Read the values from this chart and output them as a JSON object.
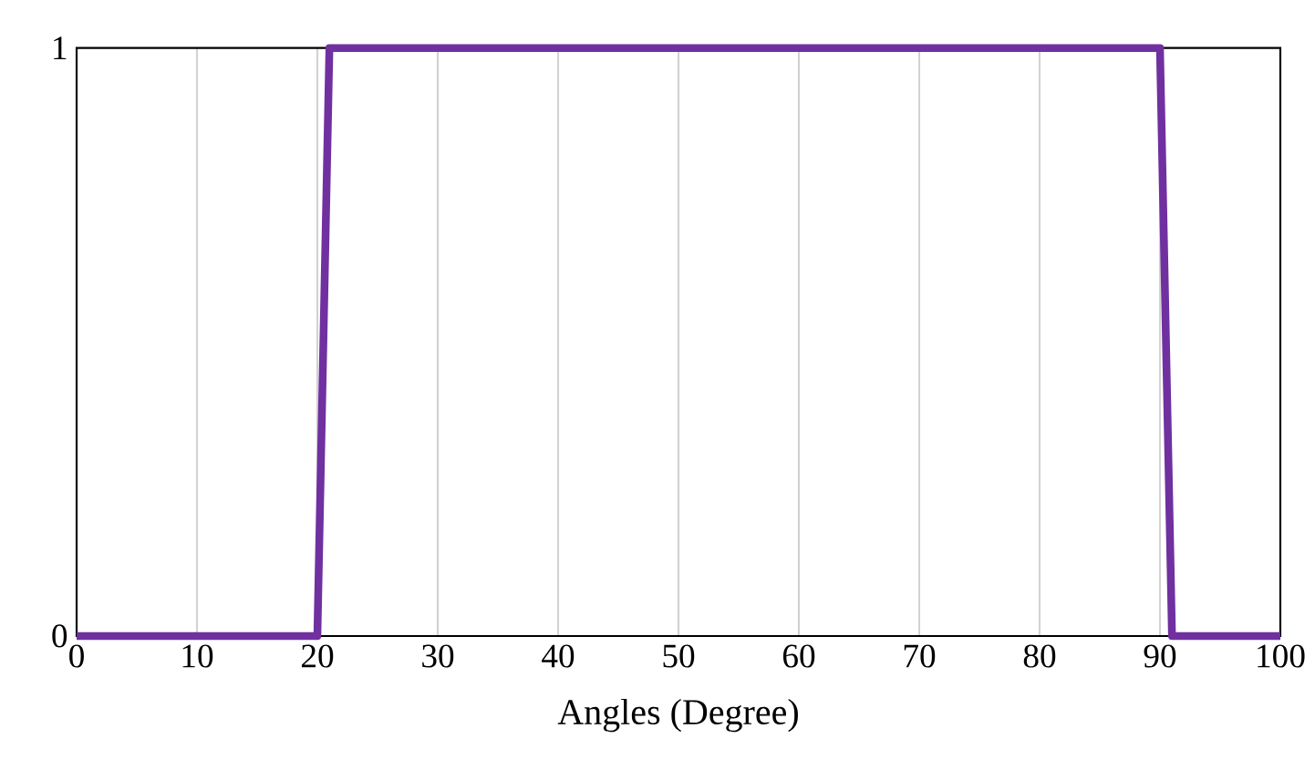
{
  "chart_data": {
    "type": "line",
    "xlabel": "Angles (Degree)",
    "x": [
      0,
      20,
      21,
      90,
      91,
      100
    ],
    "series": [
      {
        "color": "#7030a0",
        "values": [
          0,
          0,
          1,
          1,
          0,
          0
        ]
      }
    ],
    "xlim": [
      0,
      100
    ],
    "ylim": [
      0,
      1
    ],
    "xticks": [
      0,
      10,
      20,
      30,
      40,
      50,
      60,
      70,
      80,
      90,
      100
    ],
    "yticks": [
      0,
      1
    ],
    "grid": "x",
    "marker": "none",
    "line_style": "solid"
  }
}
